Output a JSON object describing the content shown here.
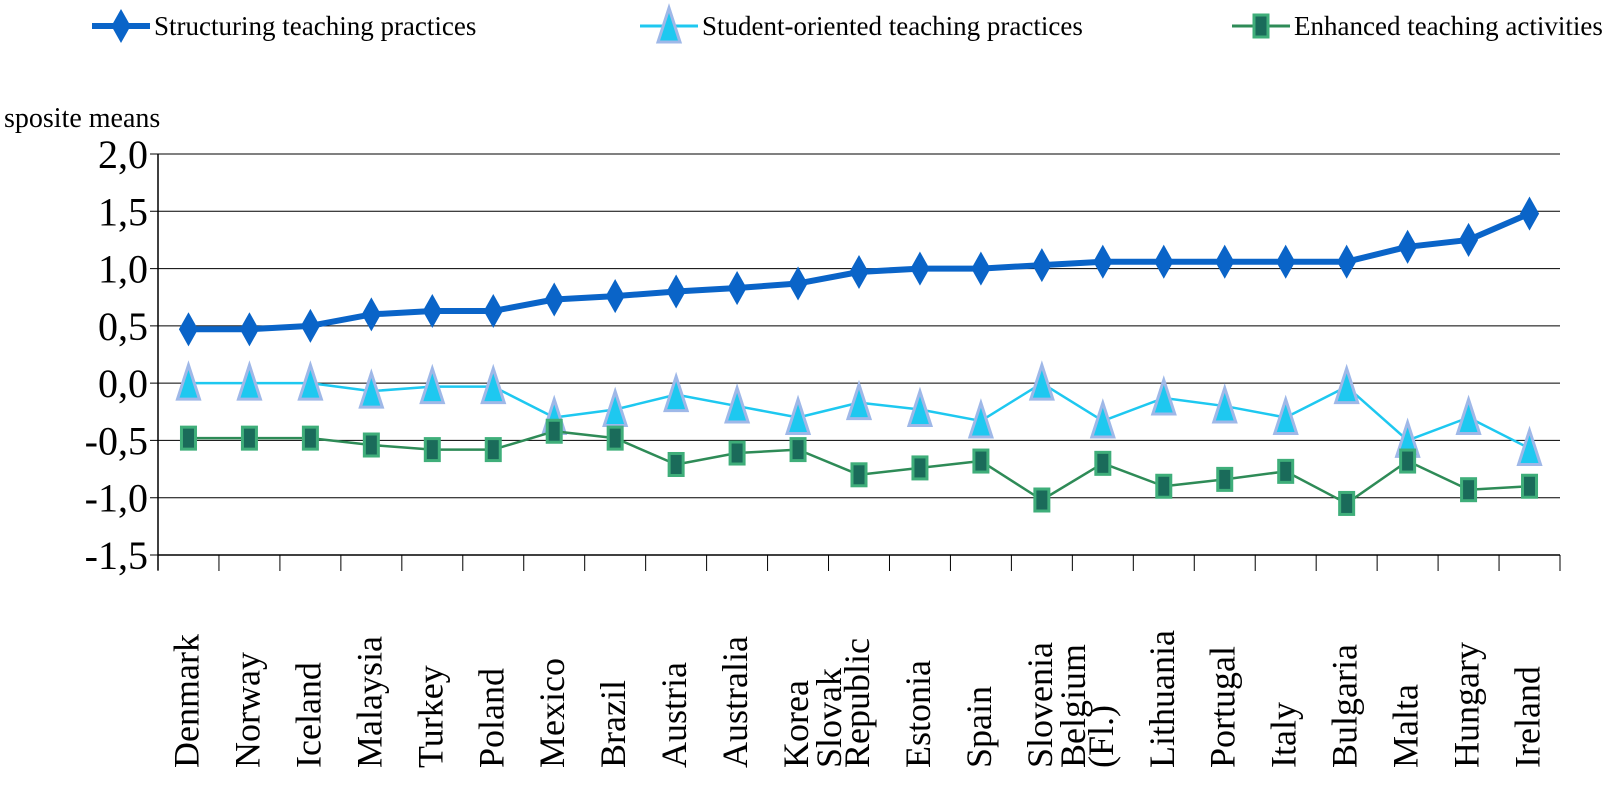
{
  "top_left_label": "sposite means",
  "chart_data": {
    "type": "line",
    "title": "",
    "xlabel": "",
    "ylabel": "",
    "ylim": [
      -1.5,
      2.0
    ],
    "yticks": [
      "2,0",
      "1,5",
      "1,0",
      "0,5",
      "0,0",
      "-0,5",
      "-1,0",
      "-1,5"
    ],
    "ytick_values": [
      2.0,
      1.5,
      1.0,
      0.5,
      0.0,
      -0.5,
      -1.0,
      -1.5
    ],
    "grid": true,
    "legend_position": "top",
    "categories": [
      "Denmark",
      "Norway",
      "Iceland",
      "Malaysia",
      "Turkey",
      "Poland",
      "Mexico",
      "Brazil",
      "Austria",
      "Australia",
      "Korea",
      "Slovak Republic",
      "Estonia",
      "Spain",
      "Slovenia",
      "Belgium (Fl.)",
      "Lithuania",
      "Portugal",
      "Italy",
      "Bulgaria",
      "Malta",
      "Hungary",
      "Ireland"
    ],
    "series": [
      {
        "name": "Structuring teaching practices",
        "color": "#0a64c8",
        "marker": "diamond",
        "values": [
          0.47,
          0.47,
          0.5,
          0.6,
          0.63,
          0.63,
          0.73,
          0.76,
          0.8,
          0.83,
          0.87,
          0.97,
          1.0,
          1.0,
          1.03,
          1.06,
          1.06,
          1.06,
          1.06,
          1.06,
          1.19,
          1.25,
          1.48
        ]
      },
      {
        "name": "Student-oriented teaching practices",
        "color": "#1ec8f0",
        "marker": "triangle",
        "values": [
          0.0,
          0.0,
          0.0,
          -0.07,
          -0.03,
          -0.03,
          -0.3,
          -0.23,
          -0.1,
          -0.2,
          -0.3,
          -0.17,
          -0.23,
          -0.33,
          0.0,
          -0.33,
          -0.13,
          -0.2,
          -0.3,
          -0.03,
          -0.5,
          -0.3,
          -0.57
        ]
      },
      {
        "name": "Enhanced teaching activities",
        "color": "#2e8b57",
        "marker": "square",
        "values": [
          -0.48,
          -0.48,
          -0.48,
          -0.54,
          -0.58,
          -0.58,
          -0.42,
          -0.48,
          -0.71,
          -0.61,
          -0.58,
          -0.8,
          -0.74,
          -0.68,
          -1.02,
          -0.7,
          -0.9,
          -0.84,
          -0.77,
          -1.05,
          -0.68,
          -0.93,
          -0.9
        ]
      }
    ]
  }
}
